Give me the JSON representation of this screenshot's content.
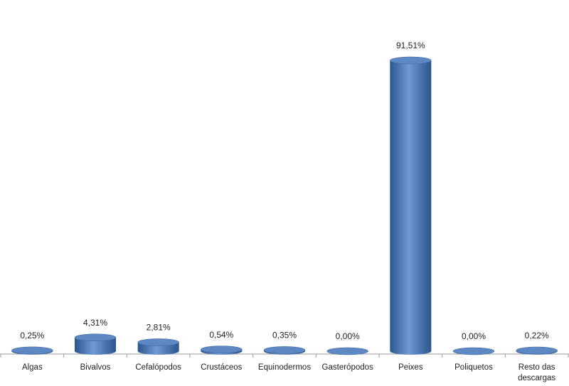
{
  "chart_data": {
    "type": "bar",
    "categories": [
      "Algas",
      "Bivalvos",
      "Cefalópodos",
      "Crustáceos",
      "Equinodermos",
      "Gasterópodos",
      "Peixes",
      "Poliquetos",
      "Resto das descargas"
    ],
    "values": [
      0.25,
      4.31,
      2.81,
      0.54,
      0.35,
      0.0,
      91.51,
      0.0,
      0.22
    ],
    "value_labels": [
      "0,25%",
      "4,31%",
      "2,81%",
      "0,54%",
      "0,35%",
      "0,00%",
      "91,51%",
      "0,00%",
      "0,22%"
    ],
    "color": "#4a78b8"
  }
}
